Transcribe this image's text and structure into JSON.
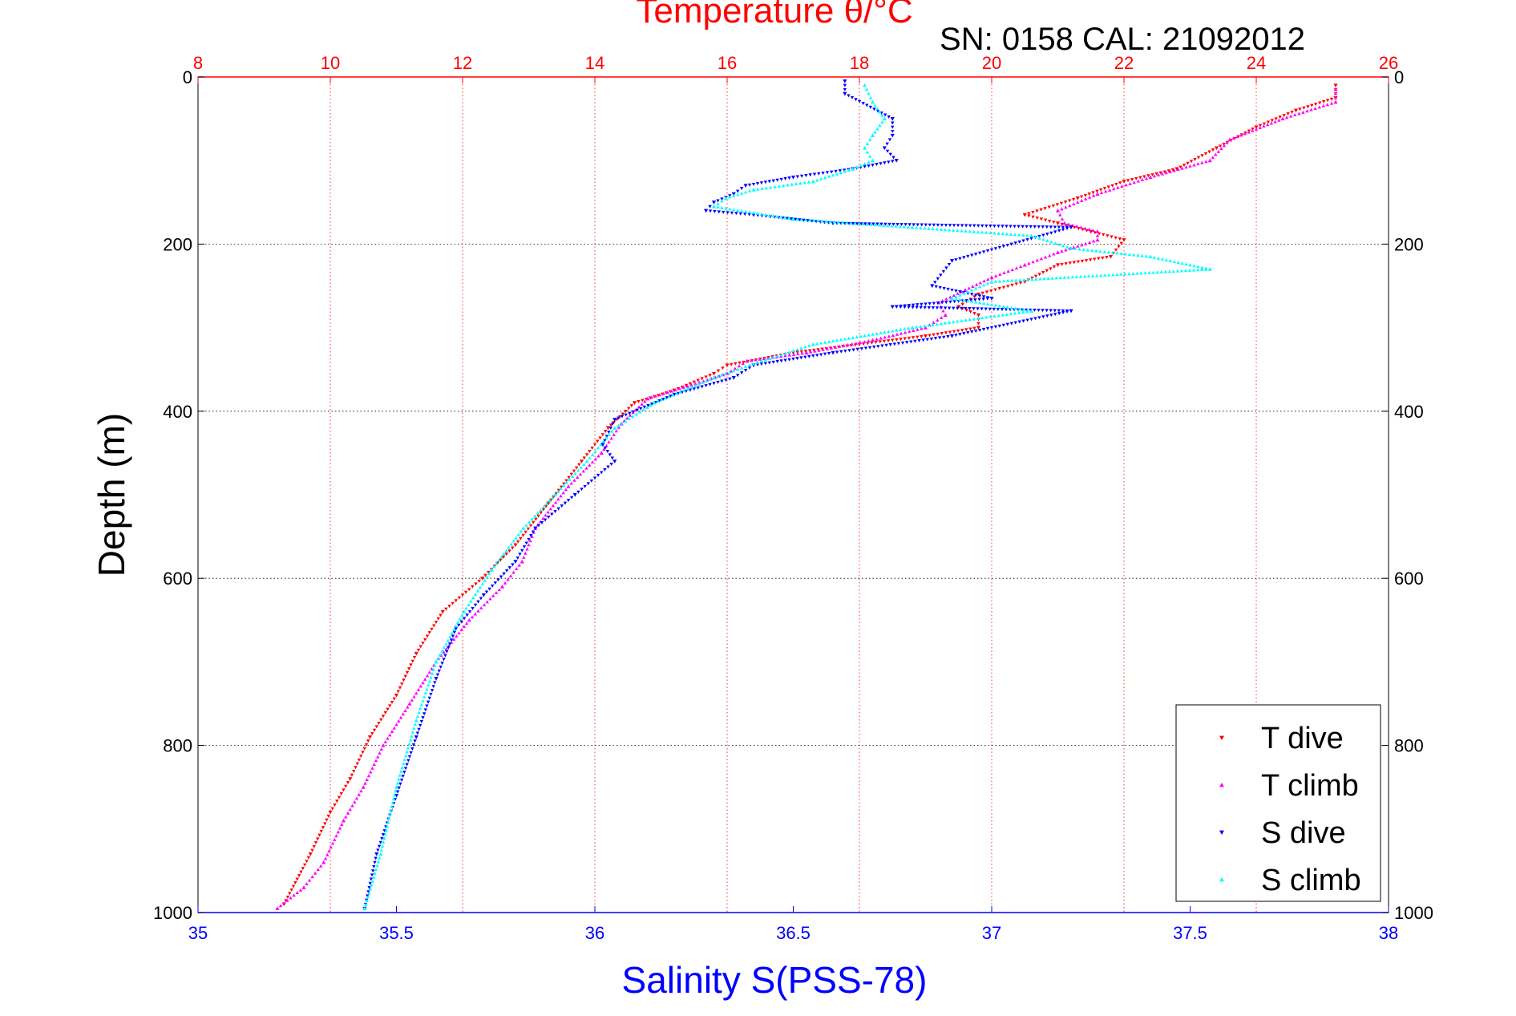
{
  "header": {
    "title": "Temperature θ/°C",
    "serial": "SN: 0158  CAL: 21092012"
  },
  "chart_data": {
    "type": "scatter",
    "title": "Temperature θ/°C",
    "ylabel": "Depth (m)",
    "xlabel_bottom": "Salinity S(PSS-78)",
    "xlabel_top": "Temperature θ/°C",
    "ylim": [
      0,
      1000
    ],
    "y_reversed": true,
    "yticks": [
      0,
      200,
      400,
      600,
      800,
      1000
    ],
    "y_tick_labels": [
      "0",
      "200",
      "400",
      "600",
      "800",
      "1000"
    ],
    "xlim_bottom": [
      35,
      38
    ],
    "xticks_bottom": [
      35,
      35.5,
      36,
      36.5,
      37,
      37.5,
      38
    ],
    "x_tick_labels_bottom": [
      "35",
      "35.5",
      "36",
      "36.5",
      "37",
      "37.5",
      "38"
    ],
    "xlim_top": [
      8,
      26
    ],
    "xticks_top": [
      8,
      10,
      12,
      14,
      16,
      18,
      20,
      22,
      24,
      26
    ],
    "x_tick_labels_top": [
      "8",
      "10",
      "12",
      "14",
      "16",
      "18",
      "20",
      "22",
      "24",
      "26"
    ],
    "grid": true,
    "legend_position": "bottom-right",
    "colors": {
      "temperature_axis": "#ff0000",
      "salinity_axis": "#0000ff",
      "t_dive": "#ff0000",
      "t_climb": "#ff00ff",
      "s_dive": "#0000ff",
      "s_climb": "#00ffff"
    },
    "series": [
      {
        "name": "T dive",
        "axis": "temperature",
        "marker": "triangle-down",
        "color": "#ff0000",
        "x": [
          25.2,
          25.2,
          24.6,
          24.0,
          23.4,
          22.8,
          22.0,
          21.3,
          20.5,
          21.0,
          21.5,
          22.0,
          21.8,
          21.0,
          20.5,
          19.8,
          19.5,
          19.8,
          19.8,
          19.0,
          18.0,
          17.0,
          16.0,
          15.8,
          15.2,
          14.6,
          14.2,
          13.8,
          13.3,
          12.8,
          12.3,
          11.7,
          11.3,
          11.0,
          10.6,
          10.3,
          10.0,
          9.7,
          9.3
        ],
        "y": [
          10,
          25,
          40,
          60,
          85,
          110,
          125,
          145,
          165,
          175,
          185,
          195,
          215,
          225,
          245,
          260,
          275,
          285,
          300,
          310,
          320,
          330,
          345,
          355,
          375,
          390,
          420,
          460,
          510,
          560,
          600,
          640,
          690,
          740,
          790,
          840,
          880,
          930,
          990
        ]
      },
      {
        "name": "T climb",
        "axis": "temperature",
        "marker": "triangle-up",
        "color": "#ff00ff",
        "x": [
          25.2,
          25.2,
          24.4,
          23.6,
          23.3,
          22.4,
          21.6,
          21.0,
          21.1,
          21.6,
          21.6,
          21.0,
          20.5,
          20.0,
          19.6,
          19.2,
          19.3,
          19.0,
          18.2,
          17.2,
          16.3,
          16.0,
          15.4,
          14.8,
          14.4,
          14.1,
          13.6,
          13.1,
          12.9,
          12.6,
          12.1,
          11.6,
          11.2,
          10.8,
          10.5,
          10.2,
          9.9,
          9.6,
          9.2
        ],
        "y": [
          15,
          30,
          50,
          75,
          100,
          120,
          140,
          160,
          175,
          185,
          195,
          210,
          225,
          240,
          255,
          270,
          285,
          300,
          315,
          330,
          340,
          355,
          370,
          385,
          415,
          450,
          490,
          540,
          580,
          610,
          650,
          700,
          750,
          800,
          850,
          890,
          940,
          970,
          995
        ]
      },
      {
        "name": "S dive",
        "axis": "salinity",
        "marker": "triangle-down",
        "color": "#0000ff",
        "x": [
          36.63,
          36.63,
          36.75,
          36.75,
          36.73,
          36.76,
          36.65,
          36.5,
          36.38,
          36.35,
          36.3,
          36.28,
          36.4,
          36.6,
          37.2,
          36.9,
          36.85,
          37.0,
          36.75,
          37.2,
          36.9,
          36.6,
          36.4,
          36.35,
          36.2,
          36.05,
          36.02,
          36.05,
          35.95,
          35.85,
          35.8,
          35.72,
          35.65,
          35.6,
          35.55,
          35.5,
          35.45,
          35.42
        ],
        "y": [
          5,
          20,
          50,
          70,
          85,
          100,
          110,
          120,
          130,
          140,
          150,
          160,
          165,
          175,
          180,
          220,
          250,
          265,
          275,
          280,
          310,
          330,
          345,
          360,
          380,
          410,
          440,
          460,
          500,
          540,
          580,
          620,
          660,
          720,
          790,
          860,
          930,
          995
        ]
      },
      {
        "name": "S climb",
        "axis": "salinity",
        "marker": "triangle-up",
        "color": "#00ffff",
        "x": [
          36.68,
          36.7,
          36.73,
          36.7,
          36.68,
          36.7,
          36.65,
          36.55,
          36.4,
          36.33,
          36.3,
          36.5,
          36.8,
          37.1,
          37.2,
          37.4,
          37.55,
          37.0,
          36.9,
          37.1,
          36.8,
          36.55,
          36.42,
          36.3,
          36.15,
          36.05,
          35.98,
          35.9,
          35.82,
          35.74,
          35.67,
          35.6,
          35.55,
          35.5,
          35.46,
          35.42
        ],
        "y": [
          10,
          30,
          50,
          70,
          85,
          100,
          110,
          125,
          135,
          145,
          155,
          170,
          180,
          190,
          205,
          215,
          230,
          245,
          265,
          280,
          300,
          320,
          340,
          360,
          390,
          420,
          460,
          500,
          540,
          590,
          640,
          700,
          770,
          850,
          930,
          995
        ]
      }
    ]
  }
}
